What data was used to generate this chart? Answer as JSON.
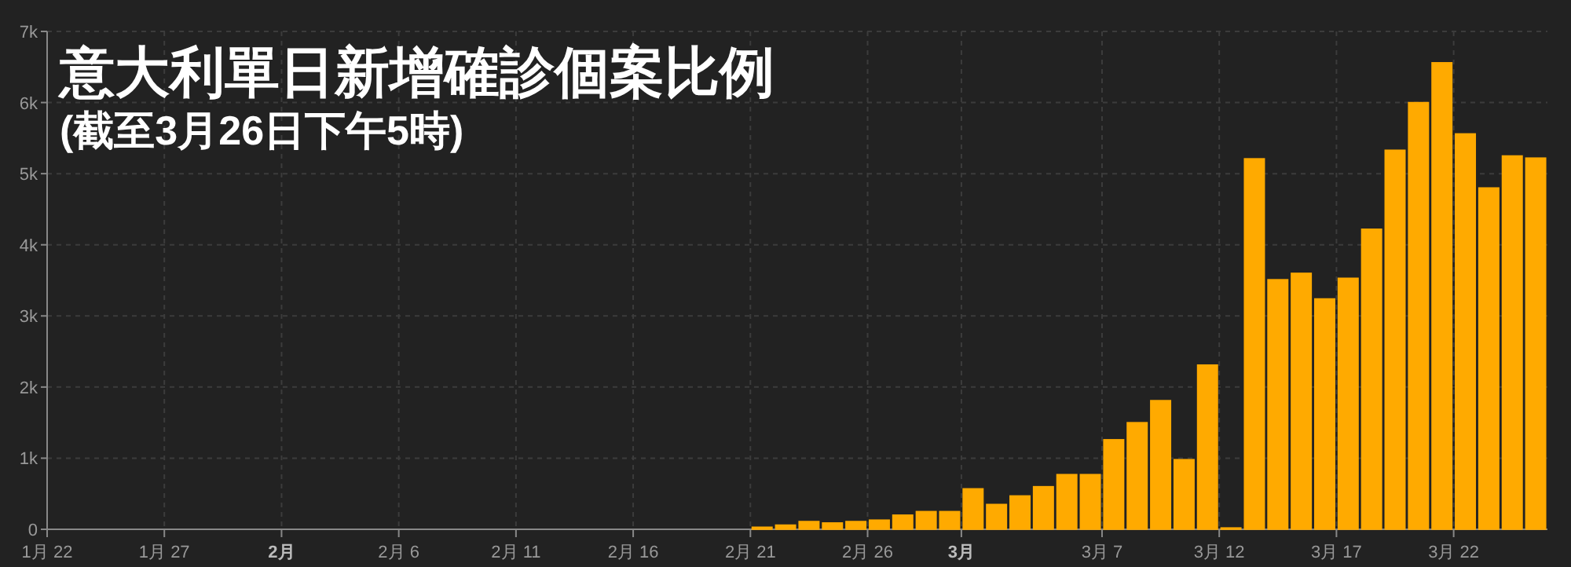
{
  "chart_data": {
    "type": "bar",
    "title": "意大利單日新增確診個案比例",
    "subtitle": "(截至3月26日下午5時)",
    "x": [
      "--01-22T12:00",
      "--01-23T12:00",
      "--01-24T12:00",
      "--01-25T12:00",
      "--01-26T12:00",
      "--01-27T12:00",
      "--01-28T12:00",
      "--01-29T12:00",
      "--01-30T12:00",
      "--01-31T12:00",
      "--02-01T12:00",
      "--02-02T12:00",
      "--02-03T12:00",
      "--02-04T12:00",
      "--02-05T12:00",
      "--02-06T12:00",
      "--02-07T12:00",
      "--02-08T12:00",
      "--02-09T12:00",
      "--02-10T12:00",
      "--02-11T12:00",
      "--02-12T12:00",
      "--02-13T12:00",
      "--02-14T12:00",
      "--02-15T12:00",
      "--02-16T12:00",
      "--02-17T12:00",
      "--02-18T12:00",
      "--02-19T12:00",
      "--02-20T12:00",
      "--02-21T12:00",
      "--02-22T12:00",
      "--02-23T12:00",
      "--02-24T12:00",
      "--02-25T12:00",
      "--02-26T12:00",
      "--02-27T12:00",
      "--02-28T12:00",
      "--02-29T12:00",
      "--03-01T12:00",
      "--03-02T12:00",
      "--03-03T12:00",
      "--03-04T12:00",
      "--03-05T12:00",
      "--03-06T12:00",
      "--03-07T12:00",
      "--03-08T12:00",
      "--03-09T12:00",
      "--03-10T12:00",
      "--03-11T12:00",
      "--03-12T12:00",
      "--03-13T12:00",
      "--03-14T12:00",
      "--03-15T12:00",
      "--03-16T12:00",
      "--03-17T12:00",
      "--03-18T12:00",
      "--03-19T12:00",
      "--03-20T12:00",
      "--03-21T12:00",
      "--03-22T12:00",
      "--03-23T12:00",
      "--03-24T12:00",
      "--03-25T12:00"
    ],
    "values": [
      0,
      0,
      0,
      0,
      0,
      0,
      0,
      0,
      0,
      0,
      0,
      0,
      0,
      0,
      0,
      0,
      0,
      0,
      0,
      0,
      0,
      0,
      0,
      0,
      0,
      0,
      0,
      0,
      0,
      0,
      30,
      60,
      110,
      90,
      110,
      130,
      200,
      250,
      250,
      570,
      350,
      470,
      600,
      770,
      770,
      1260,
      1500,
      1810,
      980,
      2310,
      20,
      5210,
      3510,
      3600,
      3240,
      3530,
      4220,
      5330,
      6000,
      6560,
      5560,
      4800,
      5250,
      5220
    ],
    "color": "#ffaa00",
    "xlim": [
      "--01-22",
      "--03-26"
    ],
    "xticks": [
      {
        "value": "--01-22",
        "label": "1月 22"
      },
      {
        "value": "--01-27",
        "label": "1月 27"
      },
      {
        "value": "--02-01",
        "label": "2月"
      },
      {
        "value": "--02-06",
        "label": "2月 6"
      },
      {
        "value": "--02-11",
        "label": "2月 11"
      },
      {
        "value": "--02-16",
        "label": "2月 16"
      },
      {
        "value": "--02-21",
        "label": "2月 21"
      },
      {
        "value": "--02-26",
        "label": "2月 26"
      },
      {
        "value": "--03-01",
        "label": "3月"
      },
      {
        "value": "--03-07",
        "label": "3月 7"
      },
      {
        "value": "--03-12",
        "label": "3月 12"
      },
      {
        "value": "--03-17",
        "label": "3月 17"
      },
      {
        "value": "--03-22",
        "label": "3月 22"
      }
    ],
    "ylim": [
      0,
      7000
    ],
    "yticks": [
      0,
      {
        "value": 1000,
        "label": "1k"
      },
      {
        "value": 2000,
        "label": "2k"
      },
      {
        "value": 3000,
        "label": "3k"
      },
      {
        "value": 4000,
        "label": "4k"
      },
      {
        "value": 5000,
        "label": "5k"
      },
      {
        "value": 6000,
        "label": "6k"
      },
      {
        "value": 7000,
        "label": "7k"
      }
    ],
    "grid": true
  }
}
